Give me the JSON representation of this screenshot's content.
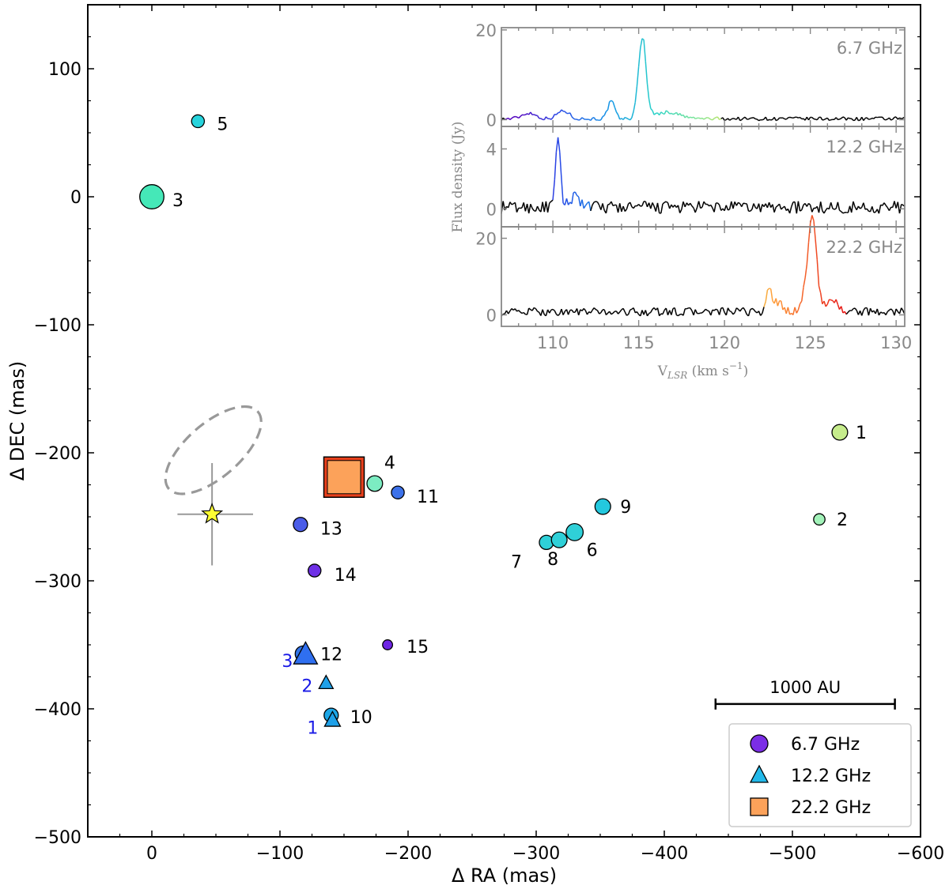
{
  "chart_data": [
    {
      "type": "scatter",
      "title": "",
      "xlabel": "Δ RA (mas)",
      "ylabel": "Δ DEC (mas)",
      "xlim": [
        50,
        -600
      ],
      "ylim": [
        -500,
        150
      ],
      "xticks": [
        0,
        -100,
        -200,
        -300,
        -400,
        -500,
        -600
      ],
      "yticks": [
        100,
        0,
        -100,
        -200,
        -300,
        -400,
        -500
      ],
      "grid": false,
      "legend_position": "bottom-right",
      "scale_bar": {
        "label": "1000 AU",
        "x_start": -440,
        "x_end": -580,
        "y": -395
      },
      "legend": [
        {
          "name": "6.7 GHz",
          "marker": "circle",
          "color": "#7b2ee6"
        },
        {
          "name": "12.2 GHz",
          "marker": "triangle",
          "color": "#23b9ea"
        },
        {
          "name": "22.2 GHz",
          "marker": "square",
          "color": "#fca25a"
        }
      ],
      "series": [
        {
          "name": "6.7 GHz",
          "marker": "circle",
          "points": [
            {
              "label": "1",
              "x": -537,
              "y": -184,
              "size": 11,
              "color": "#c6ec8c"
            },
            {
              "label": "2",
              "x": -521,
              "y": -252,
              "size": 8,
              "color": "#a2f2b9"
            },
            {
              "label": "3",
              "x": 0,
              "y": 0,
              "size": 17,
              "color": "#45e8b8"
            },
            {
              "label": "4",
              "x": -174,
              "y": -224,
              "size": 11,
              "color": "#7cecc2"
            },
            {
              "label": "5",
              "x": -36,
              "y": 59,
              "size": 9,
              "color": "#27d3dc"
            },
            {
              "label": "6",
              "x": -330,
              "y": -262,
              "size": 12,
              "color": "#2fd0d8"
            },
            {
              "label": "7",
              "x": -308,
              "y": -270,
              "size": 10,
              "color": "#2fd0d8"
            },
            {
              "label": "8",
              "x": -318,
              "y": -268,
              "size": 11,
              "color": "#2fd0d8"
            },
            {
              "label": "9",
              "x": -352,
              "y": -242,
              "size": 11,
              "color": "#24c8de"
            },
            {
              "label": "10",
              "x": -140,
              "y": -405,
              "size": 10,
              "color": "#1ca6e6"
            },
            {
              "label": "11",
              "x": -192,
              "y": -231,
              "size": 9,
              "color": "#3d72ea"
            },
            {
              "label": "12",
              "x": -118,
              "y": -357,
              "size": 11,
              "color": "#3173e8"
            },
            {
              "label": "13",
              "x": -116,
              "y": -256,
              "size": 10,
              "color": "#4a5ce8"
            },
            {
              "label": "14",
              "x": -127,
              "y": -292,
              "size": 9,
              "color": "#6e30e6"
            },
            {
              "label": "15",
              "x": -184,
              "y": -350,
              "size": 7,
              "color": "#6e24e4"
            }
          ]
        },
        {
          "name": "12.2 GHz",
          "marker": "triangle",
          "points": [
            {
              "label": "1",
              "x": -141,
              "y": -409,
              "size": 10,
              "color": "#1ea0e8"
            },
            {
              "label": "2",
              "x": -136,
              "y": -380,
              "size": 9,
              "color": "#1ea0e8"
            },
            {
              "label": "3",
              "x": -120,
              "y": -358,
              "size": 15,
              "color": "#2f6ff0"
            }
          ]
        },
        {
          "name": "22.2 GHz",
          "marker": "square",
          "points": [
            {
              "label": "",
              "x": -150,
              "y": -219,
              "size": 20,
              "color": "#fca25a",
              "edge": "#e8401c"
            }
          ]
        }
      ],
      "annotations": {
        "star": {
          "x": -47,
          "y": -248,
          "err_x": 27,
          "err_y": 40,
          "color": "#ffff33"
        },
        "ellipse": {
          "cx": -48,
          "cy": -198,
          "rx": 46,
          "ry": 21,
          "angle_deg": -41,
          "style": "dashed",
          "color": "#999999"
        }
      }
    },
    {
      "type": "line",
      "inset": true,
      "xlabel": "V",
      "xlabel_sub": "LSR",
      "xlabel_unit": "(km s",
      "xlabel_sup": "−1",
      "ylabel": "Flux density (Jy)",
      "xlim": [
        107,
        130.5
      ],
      "xticks": [
        110,
        115,
        120,
        125,
        130
      ],
      "panels": [
        {
          "name": "6.7 GHz",
          "ylim": [
            -1.5,
            20.5
          ],
          "yticks": [
            0,
            20
          ],
          "active_range": [
            107.2,
            119.8
          ],
          "noise": 0.35,
          "baseline": 0.2,
          "features": [
            {
              "center": 115.2,
              "peak": 17.8,
              "width": 0.22,
              "tail": 0.9
            },
            {
              "center": 113.4,
              "peak": 3.9,
              "width": 0.2
            },
            {
              "center": 110.6,
              "peak": 1.8,
              "width": 0.35
            },
            {
              "center": 108.6,
              "peak": 1.3,
              "width": 0.4
            },
            {
              "center": 116.8,
              "peak": 1.2,
              "width": 0.6
            }
          ]
        },
        {
          "name": "12.2 GHz",
          "ylim": [
            -1.2,
            5.5
          ],
          "yticks": [
            0,
            4
          ],
          "active_range": [
            110.0,
            112.2
          ],
          "noise": 0.35,
          "baseline": 0.1,
          "features": [
            {
              "center": 110.3,
              "peak": 4.4,
              "width": 0.14
            },
            {
              "center": 111.3,
              "peak": 0.8,
              "width": 0.3
            }
          ]
        },
        {
          "name": "22.2 GHz",
          "ylim": [
            -3,
            23
          ],
          "yticks": [
            0,
            20
          ],
          "active_range": [
            122.3,
            127.1
          ],
          "noise": 0.9,
          "baseline": 0.8,
          "features": [
            {
              "center": 125.15,
              "peak": 19.5,
              "width": 0.22
            },
            {
              "center": 124.9,
              "peak": 8.0,
              "width": 0.3
            },
            {
              "center": 122.6,
              "peak": 5.8,
              "width": 0.15
            },
            {
              "center": 123.1,
              "peak": 2.5,
              "width": 0.25
            },
            {
              "center": 126.2,
              "peak": 3.0,
              "width": 0.4
            }
          ]
        }
      ]
    }
  ]
}
